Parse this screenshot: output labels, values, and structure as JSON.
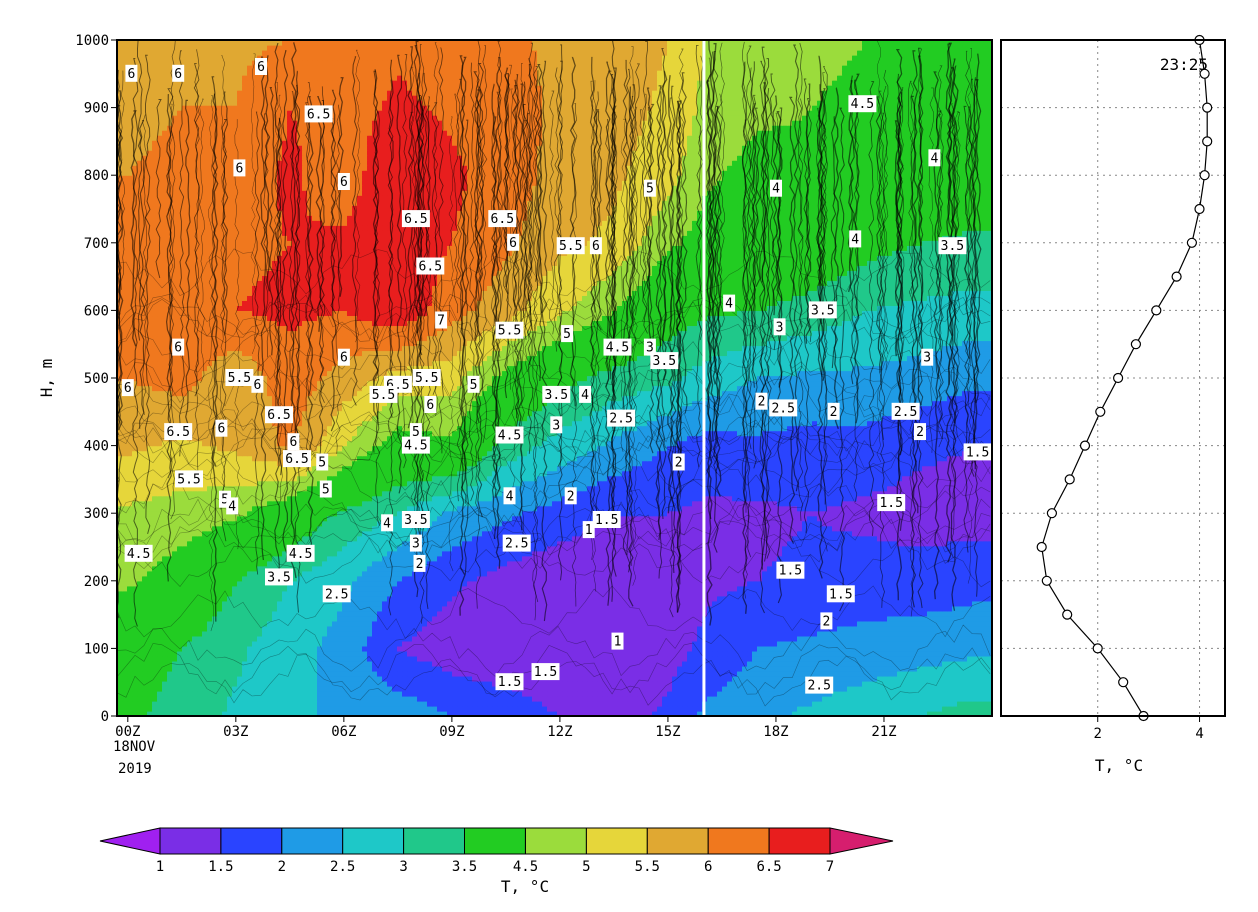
{
  "chart_data": [
    {
      "type": "heatmap",
      "subtype": "time-height contour plot",
      "xlabel": "",
      "ylabel": "H, m",
      "ylim": [
        0,
        1000
      ],
      "yticks": [
        0,
        100,
        200,
        300,
        400,
        500,
        600,
        700,
        800,
        900,
        1000
      ],
      "xlim_hours": [
        -0.3,
        24.0
      ],
      "xticks": [
        {
          "hour": 0,
          "label": "00Z"
        },
        {
          "hour": 3,
          "label": "03Z"
        },
        {
          "hour": 6,
          "label": "06Z"
        },
        {
          "hour": 9,
          "label": "09Z"
        },
        {
          "hour": 12,
          "label": "12Z"
        },
        {
          "hour": 15,
          "label": "15Z"
        },
        {
          "hour": 18,
          "label": "18Z"
        },
        {
          "hour": 21,
          "label": "21Z"
        }
      ],
      "date_label_1": "18NOV",
      "date_label_2": "2019",
      "gap_line_hour": 16.0,
      "grid": false,
      "colorbar": {
        "label": "T, °C",
        "levels": [
          1,
          1.5,
          2,
          2.5,
          3,
          3.5,
          4.5,
          5,
          5.5,
          6,
          6.5,
          7
        ],
        "level_labels": [
          "1",
          "1.5",
          "2",
          "2.5",
          "3",
          "3.5",
          "4.5",
          "5",
          "5.5",
          "6",
          "6.5",
          "7"
        ],
        "colors": [
          "#a020f0",
          "#7a2ee6",
          "#2a44ff",
          "#1f9be6",
          "#1ec8c8",
          "#20c88a",
          "#22cc22",
          "#9bdc3c",
          "#e6d63a",
          "#e0a832",
          "#f0781e",
          "#e81e1e",
          "#d61e6e"
        ],
        "extend": "both"
      },
      "grid_hours": [
        0,
        1.5,
        3,
        4.5,
        6,
        7.5,
        9,
        10.5,
        12,
        13.5,
        15,
        16,
        17.5,
        19,
        20.5,
        22,
        23.5
      ],
      "grid_heights": [
        0,
        100,
        200,
        300,
        400,
        500,
        600,
        700,
        800,
        900,
        1000
      ],
      "temperature_grid": [
        [
          3.6,
          3.3,
          2.9,
          2.6,
          2.4,
          2.3,
          2.0,
          1.8,
          1.5,
          1.3,
          1.6,
          2.1,
          2.4,
          2.6,
          2.8,
          3.0,
          3.2
        ],
        [
          3.8,
          3.5,
          3.1,
          2.7,
          2.3,
          1.5,
          1.2,
          1.1,
          1.0,
          1.0,
          1.3,
          1.6,
          2.0,
          2.1,
          2.2,
          2.3,
          2.4
        ],
        [
          4.6,
          4.2,
          3.5,
          3.0,
          2.6,
          2.0,
          1.6,
          1.3,
          1.1,
          1.1,
          1.3,
          1.4,
          1.5,
          1.6,
          1.7,
          1.7,
          1.8
        ],
        [
          4.9,
          4.8,
          4.6,
          4.0,
          3.4,
          3.0,
          2.4,
          2.1,
          1.8,
          1.5,
          1.5,
          1.4,
          1.4,
          1.5,
          1.4,
          1.3,
          1.3
        ],
        [
          5.6,
          5.4,
          5.6,
          6.1,
          5.0,
          4.2,
          4.4,
          3.3,
          2.8,
          2.4,
          2.0,
          1.8,
          1.9,
          1.8,
          1.8,
          1.6,
          1.5
        ],
        [
          6.0,
          6.2,
          5.6,
          6.3,
          5.8,
          5.3,
          5.2,
          4.3,
          3.7,
          3.3,
          3.1,
          2.8,
          2.5,
          2.4,
          2.4,
          2.3,
          2.1
        ],
        [
          6.3,
          6.4,
          6.5,
          6.6,
          6.5,
          6.9,
          6.2,
          5.7,
          5.1,
          4.5,
          3.8,
          3.6,
          3.5,
          3.3,
          3.0,
          2.9,
          2.8
        ],
        [
          6.1,
          6.3,
          6.4,
          6.5,
          6.6,
          6.9,
          6.5,
          6.1,
          5.6,
          5.4,
          4.6,
          4.3,
          4.2,
          4.0,
          3.7,
          3.5,
          3.4
        ],
        [
          6.0,
          6.1,
          6.2,
          6.6,
          6.2,
          7.0,
          6.6,
          6.3,
          5.8,
          5.6,
          5.2,
          4.6,
          4.3,
          4.4,
          4.1,
          4.0,
          3.9
        ],
        [
          5.9,
          6.0,
          6.0,
          6.5,
          6.3,
          6.6,
          6.4,
          6.2,
          5.9,
          5.7,
          5.4,
          4.9,
          4.6,
          4.5,
          4.4,
          4.3,
          4.2
        ],
        [
          5.8,
          5.9,
          5.9,
          6.0,
          6.2,
          6.4,
          6.2,
          6.1,
          5.9,
          5.8,
          5.5,
          5.0,
          4.7,
          4.6,
          4.5,
          4.5,
          4.4
        ]
      ],
      "contour_labels": [
        {
          "hour": 0.1,
          "h": 950,
          "text": "6"
        },
        {
          "hour": 1.4,
          "h": 950,
          "text": "6"
        },
        {
          "hour": 3.7,
          "h": 960,
          "text": "6"
        },
        {
          "hour": 5.3,
          "h": 890,
          "text": "6.5"
        },
        {
          "hour": 3.1,
          "h": 810,
          "text": "6"
        },
        {
          "hour": 6.0,
          "h": 790,
          "text": "6"
        },
        {
          "hour": 8.0,
          "h": 735,
          "text": "6.5"
        },
        {
          "hour": 10.4,
          "h": 735,
          "text": "6.5"
        },
        {
          "hour": 10.7,
          "h": 700,
          "text": "6"
        },
        {
          "hour": 12.3,
          "h": 695,
          "text": "5.5"
        },
        {
          "hour": 13.0,
          "h": 695,
          "text": "6"
        },
        {
          "hour": 8.4,
          "h": 665,
          "text": "6.5"
        },
        {
          "hour": 14.5,
          "h": 780,
          "text": "5"
        },
        {
          "hour": 18.0,
          "h": 780,
          "text": "4"
        },
        {
          "hour": 20.4,
          "h": 905,
          "text": "4.5"
        },
        {
          "hour": 22.4,
          "h": 825,
          "text": "4"
        },
        {
          "hour": 20.2,
          "h": 705,
          "text": "4"
        },
        {
          "hour": 22.9,
          "h": 695,
          "text": "3.5"
        },
        {
          "hour": 16.7,
          "h": 610,
          "text": "4"
        },
        {
          "hour": 19.3,
          "h": 600,
          "text": "3.5"
        },
        {
          "hour": 18.1,
          "h": 575,
          "text": "3"
        },
        {
          "hour": 22.2,
          "h": 530,
          "text": "3"
        },
        {
          "hour": 8.7,
          "h": 585,
          "text": "7"
        },
        {
          "hour": 10.6,
          "h": 570,
          "text": "5.5"
        },
        {
          "hour": 12.2,
          "h": 565,
          "text": "5"
        },
        {
          "hour": 13.6,
          "h": 545,
          "text": "4.5"
        },
        {
          "hour": 14.5,
          "h": 545,
          "text": "3"
        },
        {
          "hour": 14.9,
          "h": 525,
          "text": "3.5"
        },
        {
          "hour": 1.4,
          "h": 545,
          "text": "6"
        },
        {
          "hour": 6.0,
          "h": 530,
          "text": "6"
        },
        {
          "hour": 0.0,
          "h": 485,
          "text": "6"
        },
        {
          "hour": 3.1,
          "h": 500,
          "text": "5.5"
        },
        {
          "hour": 3.6,
          "h": 490,
          "text": "6"
        },
        {
          "hour": 7.5,
          "h": 490,
          "text": "6.5"
        },
        {
          "hour": 7.1,
          "h": 475,
          "text": "5.5"
        },
        {
          "hour": 8.3,
          "h": 500,
          "text": "5.5"
        },
        {
          "hour": 9.6,
          "h": 490,
          "text": "5"
        },
        {
          "hour": 11.9,
          "h": 475,
          "text": "3.5"
        },
        {
          "hour": 12.7,
          "h": 475,
          "text": "4"
        },
        {
          "hour": 8.4,
          "h": 460,
          "text": "6"
        },
        {
          "hour": 1.4,
          "h": 420,
          "text": "6.5"
        },
        {
          "hour": 2.6,
          "h": 425,
          "text": "6"
        },
        {
          "hour": 4.2,
          "h": 445,
          "text": "6.5"
        },
        {
          "hour": 8.0,
          "h": 420,
          "text": "5"
        },
        {
          "hour": 8.0,
          "h": 400,
          "text": "4.5"
        },
        {
          "hour": 10.6,
          "h": 415,
          "text": "4.5"
        },
        {
          "hour": 11.9,
          "h": 430,
          "text": "3"
        },
        {
          "hour": 13.7,
          "h": 440,
          "text": "2.5"
        },
        {
          "hour": 17.6,
          "h": 465,
          "text": "2"
        },
        {
          "hour": 18.2,
          "h": 455,
          "text": "2.5"
        },
        {
          "hour": 19.6,
          "h": 450,
          "text": "2"
        },
        {
          "hour": 21.6,
          "h": 450,
          "text": "2.5"
        },
        {
          "hour": 22.0,
          "h": 420,
          "text": "2"
        },
        {
          "hour": 23.6,
          "h": 390,
          "text": "1.5"
        },
        {
          "hour": 4.6,
          "h": 405,
          "text": "6"
        },
        {
          "hour": 4.7,
          "h": 380,
          "text": "6.5"
        },
        {
          "hour": 5.4,
          "h": 375,
          "text": "5"
        },
        {
          "hour": 15.3,
          "h": 375,
          "text": "2"
        },
        {
          "hour": 1.7,
          "h": 350,
          "text": "5.5"
        },
        {
          "hour": 5.5,
          "h": 335,
          "text": "5"
        },
        {
          "hour": 2.7,
          "h": 320,
          "text": "5"
        },
        {
          "hour": 2.9,
          "h": 310,
          "text": "4"
        },
        {
          "hour": 10.6,
          "h": 325,
          "text": "4"
        },
        {
          "hour": 12.3,
          "h": 325,
          "text": "2"
        },
        {
          "hour": 21.2,
          "h": 315,
          "text": "1.5"
        },
        {
          "hour": 7.2,
          "h": 285,
          "text": "4"
        },
        {
          "hour": 8.0,
          "h": 290,
          "text": "3.5"
        },
        {
          "hour": 13.3,
          "h": 290,
          "text": "1.5"
        },
        {
          "hour": 12.8,
          "h": 275,
          "text": "1"
        },
        {
          "hour": 0.3,
          "h": 240,
          "text": "4.5"
        },
        {
          "hour": 4.8,
          "h": 240,
          "text": "4.5"
        },
        {
          "hour": 8.0,
          "h": 255,
          "text": "3"
        },
        {
          "hour": 10.8,
          "h": 255,
          "text": "2.5"
        },
        {
          "hour": 8.1,
          "h": 225,
          "text": "2"
        },
        {
          "hour": 4.2,
          "h": 205,
          "text": "3.5"
        },
        {
          "hour": 18.4,
          "h": 215,
          "text": "1.5"
        },
        {
          "hour": 5.8,
          "h": 180,
          "text": "2.5"
        },
        {
          "hour": 19.8,
          "h": 180,
          "text": "1.5"
        },
        {
          "hour": 19.4,
          "h": 140,
          "text": "2"
        },
        {
          "hour": 13.6,
          "h": 110,
          "text": "1"
        },
        {
          "hour": 11.6,
          "h": 65,
          "text": "1.5"
        },
        {
          "hour": 10.6,
          "h": 50,
          "text": "1.5"
        },
        {
          "hour": 19.2,
          "h": 45,
          "text": "2.5"
        }
      ]
    },
    {
      "type": "line",
      "title": "23:25",
      "xlabel": "T, °C",
      "ylabel": "",
      "xlim": [
        0.1,
        4.5
      ],
      "ylim": [
        0,
        1000
      ],
      "xticks": [
        2,
        4
      ],
      "grid": true,
      "series": [
        {
          "x": [
            2.9,
            2.5,
            2.0,
            1.4,
            1.0,
            0.9,
            1.1,
            1.45,
            1.75,
            2.05,
            2.4,
            2.75,
            3.15,
            3.55,
            3.85,
            4.0,
            4.1,
            4.15,
            4.15,
            4.1,
            4.0
          ],
          "y": [
            0,
            50,
            100,
            150,
            200,
            250,
            300,
            350,
            400,
            450,
            500,
            550,
            600,
            650,
            700,
            750,
            800,
            850,
            900,
            950,
            1000
          ],
          "marker": "circle"
        }
      ]
    }
  ]
}
